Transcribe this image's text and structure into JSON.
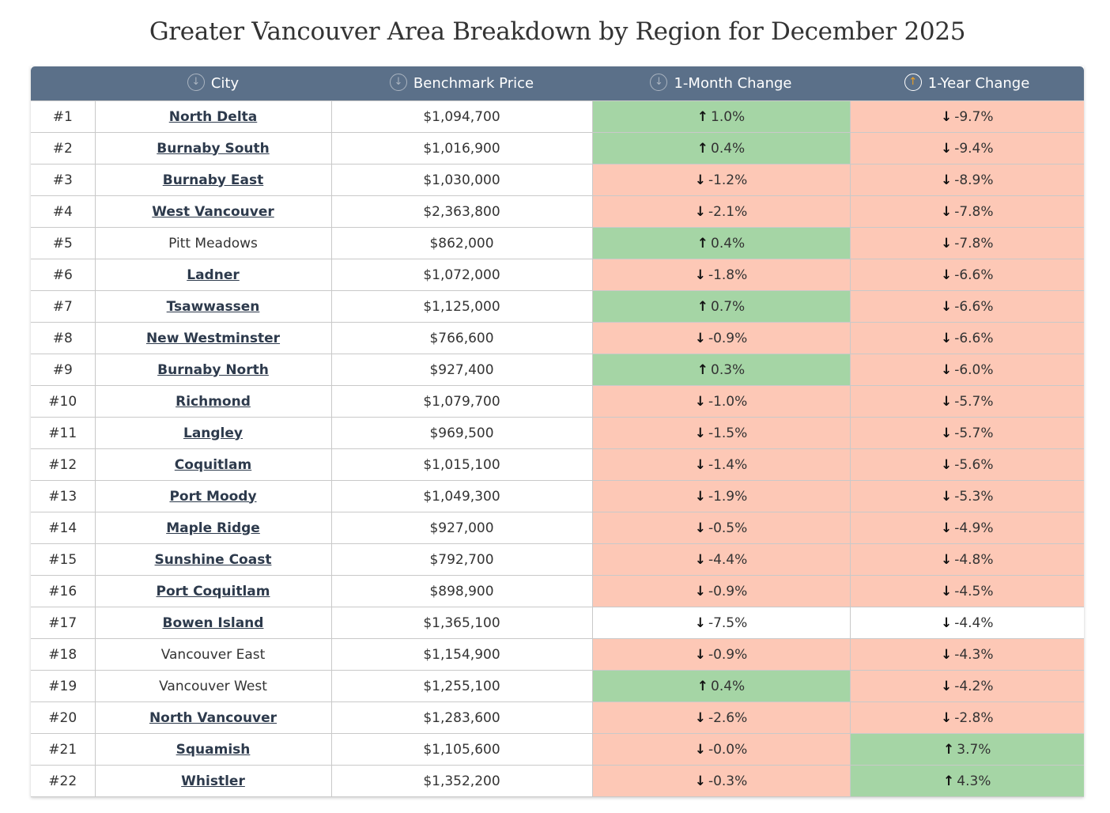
{
  "title": "Greater Vancouver Area Breakdown by Region for December 2025",
  "headers": {
    "city": "City",
    "price": "Benchmark Price",
    "month": "1-Month Change",
    "year": "1-Year Change"
  },
  "colors": {
    "header": "#5b7089",
    "positive": "#a5d5a5",
    "negative": "#fdc8b6"
  },
  "rows": [
    {
      "rank": "#1",
      "city": "North Delta",
      "link": true,
      "price": "$1,094,700",
      "month": "1.0%",
      "month_dir": "up",
      "month_bg": "up",
      "year": "-9.7%",
      "year_dir": "down",
      "year_bg": "down"
    },
    {
      "rank": "#2",
      "city": "Burnaby South",
      "link": true,
      "price": "$1,016,900",
      "month": "0.4%",
      "month_dir": "up",
      "month_bg": "up",
      "year": "-9.4%",
      "year_dir": "down",
      "year_bg": "down"
    },
    {
      "rank": "#3",
      "city": "Burnaby East",
      "link": true,
      "price": "$1,030,000",
      "month": "-1.2%",
      "month_dir": "down",
      "month_bg": "down",
      "year": "-8.9%",
      "year_dir": "down",
      "year_bg": "down"
    },
    {
      "rank": "#4",
      "city": "West Vancouver",
      "link": true,
      "price": "$2,363,800",
      "month": "-2.1%",
      "month_dir": "down",
      "month_bg": "down",
      "year": "-7.8%",
      "year_dir": "down",
      "year_bg": "down"
    },
    {
      "rank": "#5",
      "city": "Pitt Meadows",
      "link": false,
      "price": "$862,000",
      "month": "0.4%",
      "month_dir": "up",
      "month_bg": "up",
      "year": "-7.8%",
      "year_dir": "down",
      "year_bg": "down"
    },
    {
      "rank": "#6",
      "city": "Ladner",
      "link": true,
      "price": "$1,072,000",
      "month": "-1.8%",
      "month_dir": "down",
      "month_bg": "down",
      "year": "-6.6%",
      "year_dir": "down",
      "year_bg": "down"
    },
    {
      "rank": "#7",
      "city": "Tsawwassen",
      "link": true,
      "price": "$1,125,000",
      "month": "0.7%",
      "month_dir": "up",
      "month_bg": "up",
      "year": "-6.6%",
      "year_dir": "down",
      "year_bg": "down"
    },
    {
      "rank": "#8",
      "city": "New Westminster",
      "link": true,
      "price": "$766,600",
      "month": "-0.9%",
      "month_dir": "down",
      "month_bg": "down",
      "year": "-6.6%",
      "year_dir": "down",
      "year_bg": "down"
    },
    {
      "rank": "#9",
      "city": "Burnaby North",
      "link": true,
      "price": "$927,400",
      "month": "0.3%",
      "month_dir": "up",
      "month_bg": "up",
      "year": "-6.0%",
      "year_dir": "down",
      "year_bg": "down"
    },
    {
      "rank": "#10",
      "city": "Richmond",
      "link": true,
      "price": "$1,079,700",
      "month": "-1.0%",
      "month_dir": "down",
      "month_bg": "down",
      "year": "-5.7%",
      "year_dir": "down",
      "year_bg": "down"
    },
    {
      "rank": "#11",
      "city": "Langley",
      "link": true,
      "price": "$969,500",
      "month": "-1.5%",
      "month_dir": "down",
      "month_bg": "down",
      "year": "-5.7%",
      "year_dir": "down",
      "year_bg": "down"
    },
    {
      "rank": "#12",
      "city": "Coquitlam",
      "link": true,
      "price": "$1,015,100",
      "month": "-1.4%",
      "month_dir": "down",
      "month_bg": "down",
      "year": "-5.6%",
      "year_dir": "down",
      "year_bg": "down"
    },
    {
      "rank": "#13",
      "city": "Port Moody",
      "link": true,
      "price": "$1,049,300",
      "month": "-1.9%",
      "month_dir": "down",
      "month_bg": "down",
      "year": "-5.3%",
      "year_dir": "down",
      "year_bg": "down"
    },
    {
      "rank": "#14",
      "city": "Maple Ridge",
      "link": true,
      "price": "$927,000",
      "month": "-0.5%",
      "month_dir": "down",
      "month_bg": "down",
      "year": "-4.9%",
      "year_dir": "down",
      "year_bg": "down"
    },
    {
      "rank": "#15",
      "city": "Sunshine Coast",
      "link": true,
      "price": "$792,700",
      "month": "-4.4%",
      "month_dir": "down",
      "month_bg": "down",
      "year": "-4.8%",
      "year_dir": "down",
      "year_bg": "down"
    },
    {
      "rank": "#16",
      "city": "Port Coquitlam",
      "link": true,
      "price": "$898,900",
      "month": "-0.9%",
      "month_dir": "down",
      "month_bg": "down",
      "year": "-4.5%",
      "year_dir": "down",
      "year_bg": "down"
    },
    {
      "rank": "#17",
      "city": "Bowen Island",
      "link": true,
      "price": "$1,365,100",
      "month": "-7.5%",
      "month_dir": "down",
      "month_bg": "none",
      "year": "-4.4%",
      "year_dir": "down",
      "year_bg": "none"
    },
    {
      "rank": "#18",
      "city": "Vancouver East",
      "link": false,
      "price": "$1,154,900",
      "month": "-0.9%",
      "month_dir": "down",
      "month_bg": "down",
      "year": "-4.3%",
      "year_dir": "down",
      "year_bg": "down"
    },
    {
      "rank": "#19",
      "city": "Vancouver West",
      "link": false,
      "price": "$1,255,100",
      "month": "0.4%",
      "month_dir": "up",
      "month_bg": "up",
      "year": "-4.2%",
      "year_dir": "down",
      "year_bg": "down"
    },
    {
      "rank": "#20",
      "city": "North Vancouver",
      "link": true,
      "price": "$1,283,600",
      "month": "-2.6%",
      "month_dir": "down",
      "month_bg": "down",
      "year": "-2.8%",
      "year_dir": "down",
      "year_bg": "down"
    },
    {
      "rank": "#21",
      "city": "Squamish",
      "link": true,
      "price": "$1,105,600",
      "month": "-0.0%",
      "month_dir": "down",
      "month_bg": "down",
      "year": "3.7%",
      "year_dir": "up",
      "year_bg": "up"
    },
    {
      "rank": "#22",
      "city": "Whistler",
      "link": true,
      "price": "$1,352,200",
      "month": "-0.3%",
      "month_dir": "down",
      "month_bg": "down",
      "year": "4.3%",
      "year_dir": "up",
      "year_bg": "up"
    }
  ]
}
